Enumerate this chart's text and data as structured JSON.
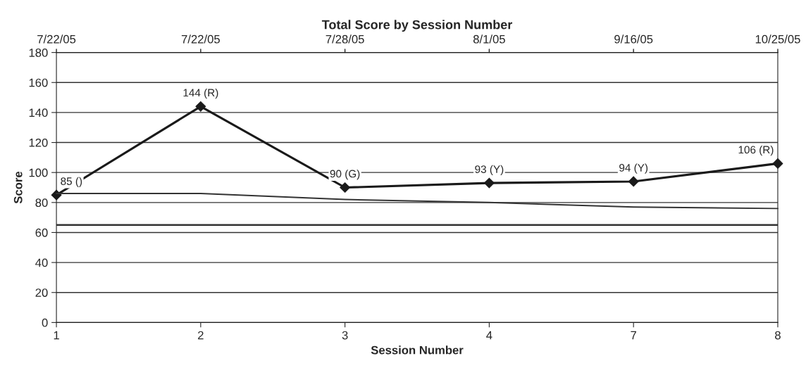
{
  "chart_data": {
    "type": "line",
    "title": "Total Score by Session Number",
    "xlabel": "Session Number",
    "ylabel": "Score",
    "categories": [
      "1",
      "2",
      "3",
      "4",
      "7",
      "8"
    ],
    "annotations": [
      "7/22/05",
      "7/22/05",
      "7/28/05",
      "8/1/05",
      "9/16/05",
      "10/25/05"
    ],
    "series": [
      {
        "color": "#1a1a1a",
        "marker": "diamond",
        "values": [
          85,
          144,
          90,
          93,
          94,
          106
        ],
        "value_labels": [
          "85 ()",
          "144 (R)",
          "90 (G)",
          "93 (Y)",
          "94 (Y)",
          "106 (R)"
        ]
      },
      {
        "color": "#333333",
        "marker": "none",
        "values": [
          86,
          86,
          82,
          80,
          77,
          76
        ]
      }
    ],
    "ref_lines": [
      {
        "axis": "y",
        "value": 65,
        "color": "#333333"
      }
    ],
    "ylim": [
      0,
      180
    ],
    "yticks": [
      0,
      20,
      40,
      60,
      80,
      100,
      120,
      140,
      160,
      180
    ],
    "grid": "y",
    "legend": false
  }
}
